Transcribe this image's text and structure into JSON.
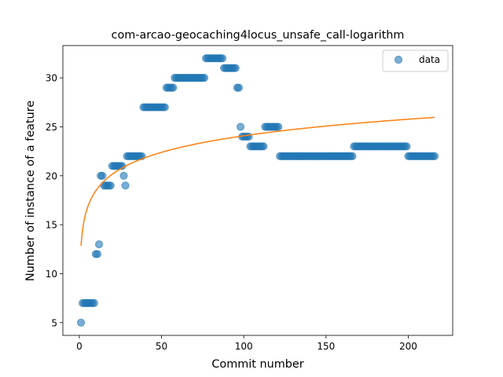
{
  "chart_data": {
    "type": "scatter",
    "title": "com-arcao-geocaching4locus_unsafe_call-logarithm",
    "xlabel": "Commit number",
    "ylabel": "Number of instance of a feature",
    "xlim": [
      -10,
      227
    ],
    "ylim": [
      3.7,
      33.3
    ],
    "xticks": [
      0,
      50,
      100,
      150,
      200
    ],
    "yticks": [
      5,
      10,
      15,
      20,
      25,
      30
    ],
    "grid": false,
    "legend_position": "top-right",
    "colors": {
      "data": "#1f77b4",
      "fit": "#ff7f0e"
    },
    "series": [
      {
        "name": "data",
        "kind": "scatter",
        "runs": [
          {
            "from": 1,
            "to": 1,
            "y": 5
          },
          {
            "from": 2,
            "to": 9,
            "y": 7
          },
          {
            "from": 10,
            "to": 11,
            "y": 12
          },
          {
            "from": 12,
            "to": 12,
            "y": 13
          },
          {
            "from": 13,
            "to": 14,
            "y": 20
          },
          {
            "from": 15,
            "to": 19,
            "y": 19
          },
          {
            "from": 20,
            "to": 26,
            "y": 21
          },
          {
            "from": 27,
            "to": 27,
            "y": 20
          },
          {
            "from": 28,
            "to": 28,
            "y": 19
          },
          {
            "from": 29,
            "to": 38,
            "y": 22
          },
          {
            "from": 39,
            "to": 52,
            "y": 27
          },
          {
            "from": 53,
            "to": 57,
            "y": 29
          },
          {
            "from": 58,
            "to": 76,
            "y": 30
          },
          {
            "from": 77,
            "to": 87,
            "y": 32
          },
          {
            "from": 88,
            "to": 95,
            "y": 31
          },
          {
            "from": 96,
            "to": 97,
            "y": 29
          },
          {
            "from": 98,
            "to": 98,
            "y": 25
          },
          {
            "from": 99,
            "to": 103,
            "y": 24
          },
          {
            "from": 104,
            "to": 112,
            "y": 23
          },
          {
            "from": 113,
            "to": 121,
            "y": 25
          },
          {
            "from": 122,
            "to": 166,
            "y": 22
          },
          {
            "from": 167,
            "to": 199,
            "y": 23
          },
          {
            "from": 200,
            "to": 216,
            "y": 22
          }
        ]
      },
      {
        "kind": "line",
        "model": "a*ln(x)+b",
        "a": 2.44,
        "b": 12.85,
        "x_range": [
          1,
          216
        ]
      }
    ]
  }
}
